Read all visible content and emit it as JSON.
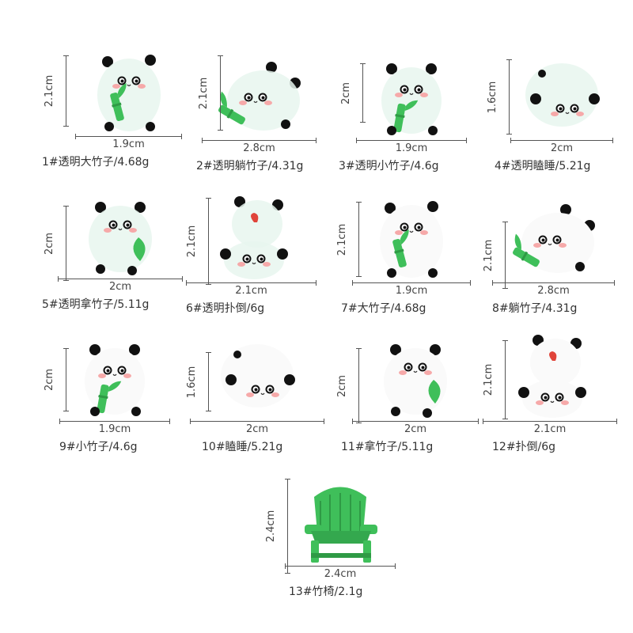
{
  "items": [
    {
      "height": "2.1cm",
      "width": "1.9cm",
      "caption": "1#透明大竹子/4.68g",
      "clear": true,
      "pose": "hold"
    },
    {
      "height": "2.1cm",
      "width": "2.8cm",
      "caption": "2#透明躺竹子/4.31g",
      "clear": true,
      "pose": "lie"
    },
    {
      "height": "2cm",
      "width": "1.9cm",
      "caption": "3#透明小竹子/4.6g",
      "clear": true,
      "pose": "small"
    },
    {
      "height": "1.6cm",
      "width": "2cm",
      "caption": "4#透明瞌睡/5.21g",
      "clear": true,
      "pose": "sleep"
    },
    {
      "height": "2cm",
      "width": "2cm",
      "caption": "5#透明拿竹子/5.11g",
      "clear": true,
      "pose": "leaf"
    },
    {
      "height": "2.1cm",
      "width": "2.1cm",
      "caption": "6#透明扑倒/6g",
      "clear": true,
      "pose": "stack"
    },
    {
      "height": "2.1cm",
      "width": "1.9cm",
      "caption": "7#大竹子/4.68g",
      "clear": false,
      "pose": "hold"
    },
    {
      "height": "2.1cm",
      "width": "2.8cm",
      "caption": "8#躺竹子/4.31g",
      "clear": false,
      "pose": "lie"
    },
    {
      "height": "2cm",
      "width": "1.9cm",
      "caption": "9#小竹子/4.6g",
      "clear": false,
      "pose": "small"
    },
    {
      "height": "1.6cm",
      "width": "2cm",
      "caption": "10#瞌睡/5.21g",
      "clear": false,
      "pose": "sleep"
    },
    {
      "height": "2cm",
      "width": "2cm",
      "caption": "11#拿竹子/5.11g",
      "clear": false,
      "pose": "leaf"
    },
    {
      "height": "2.1cm",
      "width": "2.1cm",
      "caption": "12#扑倒/6g",
      "clear": false,
      "pose": "stack"
    },
    {
      "height": "2.4cm",
      "width": "2.4cm",
      "caption": "13#竹椅/2.1g",
      "clear": false,
      "pose": "chair"
    }
  ],
  "colors": {
    "bamboo": "#3fbf5a",
    "clear_body": "#e8f6ef",
    "white_body": "#fafafa",
    "ear": "#111111",
    "blush": "#f6a9a9",
    "heart": "#e0443a"
  }
}
